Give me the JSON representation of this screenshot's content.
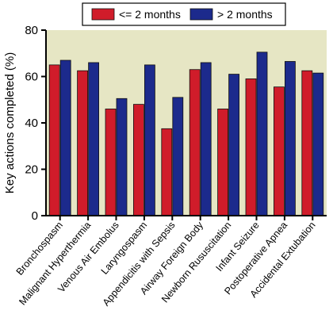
{
  "chart_data": {
    "type": "bar",
    "categories": [
      "Bronchospasm",
      "Malignant Hyperthermia",
      "Venous Air Embolus",
      "Laryngospasm",
      "Appendicitis with Sepsis",
      "Airway Foreign Body",
      "Newborn Rususcitation",
      "Infant Seizure",
      "Postoperative Apnea",
      "Accidental Extubation"
    ],
    "series": [
      {
        "name": "<= 2 months",
        "color": "#d01c2a",
        "values": [
          65,
          62.5,
          46,
          48,
          37.5,
          63,
          46,
          59,
          55.5,
          62.5
        ]
      },
      {
        "name": "> 2 months",
        "color": "#1c2a8c",
        "values": [
          67,
          66,
          50.5,
          65,
          51,
          66,
          61,
          70.5,
          66.5,
          61.5
        ]
      }
    ],
    "ylabel": "Key actions completed (%)",
    "xlabel": "",
    "ylim": [
      0,
      80
    ],
    "yticks": [
      0,
      20,
      40,
      60,
      80
    ],
    "plot_background": "#e6e6c4",
    "legend_position": "top-center",
    "grid": false
  }
}
